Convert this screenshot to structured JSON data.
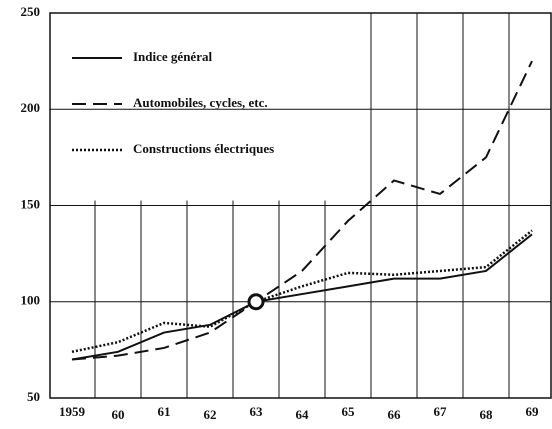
{
  "chart_data": {
    "type": "line",
    "categories": [
      "1959",
      "60",
      "61",
      "62",
      "63",
      "64",
      "65",
      "66",
      "67",
      "68",
      "69"
    ],
    "series": [
      {
        "name": "Indice général",
        "color": "#111111",
        "dash": "solid",
        "values": [
          70,
          74,
          84,
          88,
          100,
          104,
          108,
          112,
          112,
          116,
          135
        ]
      },
      {
        "name": "Automobiles, cycles, etc.",
        "color": "#111111",
        "dash": "dashed",
        "values": [
          70,
          72,
          76,
          84,
          100,
          116,
          142,
          163,
          156,
          175,
          225
        ]
      },
      {
        "name": "Constructions électriques",
        "color": "#111111",
        "dash": "dotted",
        "values": [
          74,
          79,
          89,
          87,
          100,
          108,
          115,
          114,
          116,
          118,
          137
        ]
      }
    ],
    "ylim": [
      50,
      250
    ],
    "yticks": [
      50,
      100,
      150,
      200,
      250
    ],
    "grid": true,
    "legend": "upper left"
  }
}
